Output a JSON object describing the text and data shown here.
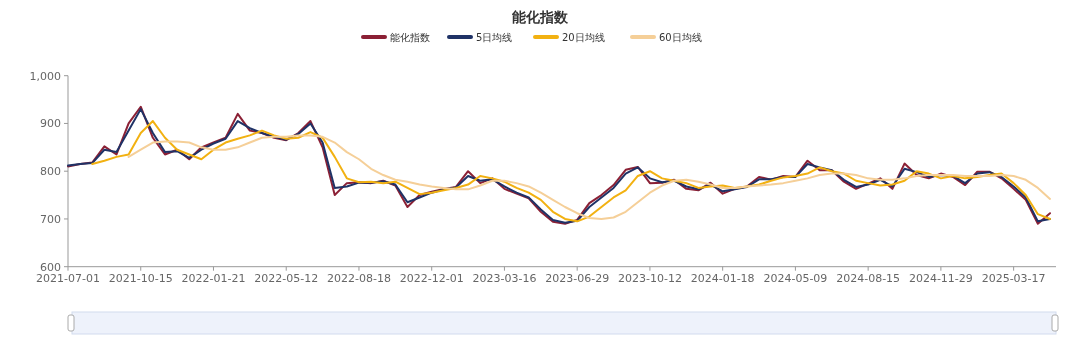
{
  "chart_data": {
    "type": "line",
    "title": "能化指数",
    "categories": [
      "2021-07-01",
      null,
      null,
      null,
      null,
      null,
      "2021-10-15",
      null,
      null,
      null,
      null,
      null,
      "2022-01-21",
      null,
      null,
      null,
      null,
      null,
      "2022-05-12",
      null,
      null,
      null,
      null,
      null,
      "2022-08-18",
      null,
      null,
      null,
      null,
      null,
      "2022-12-01",
      null,
      null,
      null,
      null,
      null,
      "2023-03-16",
      null,
      null,
      null,
      null,
      null,
      "2023-06-29",
      null,
      null,
      null,
      null,
      null,
      "2023-10-12",
      null,
      null,
      null,
      null,
      null,
      "2024-01-18",
      null,
      null,
      null,
      null,
      null,
      "2024-05-09",
      null,
      null,
      null,
      null,
      null,
      "2024-08-15",
      null,
      null,
      null,
      null,
      null,
      "2024-11-29",
      null,
      null,
      null,
      null,
      null,
      "2025-03-17",
      null,
      null,
      null
    ],
    "ylim": [
      600,
      1000
    ],
    "yticks": [
      600,
      700,
      800,
      900,
      {
        "value": 1000,
        "label": "1,000"
      }
    ],
    "grid": false,
    "legend": "top",
    "marker": "none",
    "line_style": "solid",
    "series": [
      {
        "name": "能化指数",
        "color": "#8b2035",
        "values": [
          810,
          815,
          818,
          852,
          835,
          900,
          935,
          870,
          835,
          845,
          825,
          850,
          860,
          870,
          920,
          885,
          880,
          870,
          865,
          880,
          905,
          850,
          750,
          775,
          777,
          775,
          780,
          770,
          725,
          750,
          757,
          763,
          767,
          800,
          775,
          785,
          763,
          753,
          743,
          715,
          694,
          690,
          698,
          733,
          750,
          771,
          803,
          809,
          775,
          776,
          782,
          763,
          760,
          776,
          753,
          763,
          768,
          788,
          782,
          790,
          788,
          822,
          802,
          802,
          778,
          763,
          774,
          785,
          763,
          816,
          792,
          785,
          795,
          788,
          771,
          799,
          799,
          785,
          763,
          740,
          690,
          712
        ]
      },
      {
        "name": "5日均线",
        "color": "#1f3266",
        "values": [
          812,
          815,
          817,
          845,
          840,
          885,
          930,
          880,
          840,
          842,
          828,
          845,
          858,
          868,
          905,
          890,
          880,
          872,
          866,
          878,
          900,
          860,
          765,
          768,
          776,
          776,
          779,
          772,
          735,
          745,
          755,
          762,
          766,
          790,
          780,
          783,
          768,
          755,
          745,
          720,
          698,
          692,
          696,
          725,
          745,
          765,
          795,
          808,
          785,
          777,
          780,
          768,
          762,
          772,
          758,
          762,
          767,
          783,
          783,
          788,
          788,
          815,
          808,
          802,
          782,
          767,
          772,
          782,
          768,
          805,
          798,
          788,
          792,
          790,
          775,
          795,
          798,
          788,
          768,
          745,
          695,
          700
        ]
      },
      {
        "name": "20日均线",
        "color": "#f2b111",
        "values": [
          null,
          null,
          815,
          822,
          830,
          835,
          880,
          905,
          870,
          845,
          835,
          825,
          845,
          860,
          868,
          875,
          885,
          875,
          868,
          870,
          882,
          870,
          830,
          785,
          777,
          778,
          775,
          778,
          765,
          752,
          755,
          760,
          765,
          772,
          790,
          785,
          778,
          765,
          755,
          740,
          715,
          700,
          695,
          705,
          725,
          745,
          760,
          790,
          800,
          785,
          780,
          775,
          765,
          768,
          770,
          765,
          768,
          772,
          780,
          787,
          790,
          795,
          808,
          800,
          795,
          780,
          775,
          770,
          772,
          780,
          800,
          795,
          785,
          790,
          785,
          788,
          792,
          795,
          775,
          750,
          710,
          700
        ]
      },
      {
        "name": "60日均线",
        "color": "#f5cf98",
        "values": [
          null,
          null,
          null,
          null,
          null,
          830,
          845,
          860,
          862,
          862,
          860,
          850,
          845,
          845,
          850,
          860,
          870,
          872,
          872,
          875,
          875,
          872,
          860,
          840,
          825,
          805,
          792,
          782,
          778,
          772,
          768,
          765,
          762,
          762,
          770,
          780,
          780,
          775,
          768,
          755,
          740,
          725,
          712,
          702,
          700,
          703,
          715,
          735,
          755,
          770,
          780,
          782,
          778,
          772,
          765,
          765,
          768,
          770,
          772,
          775,
          780,
          785,
          792,
          795,
          795,
          792,
          785,
          782,
          782,
          785,
          790,
          792,
          792,
          792,
          790,
          790,
          790,
          792,
          790,
          782,
          765,
          742
        ]
      }
    ]
  }
}
